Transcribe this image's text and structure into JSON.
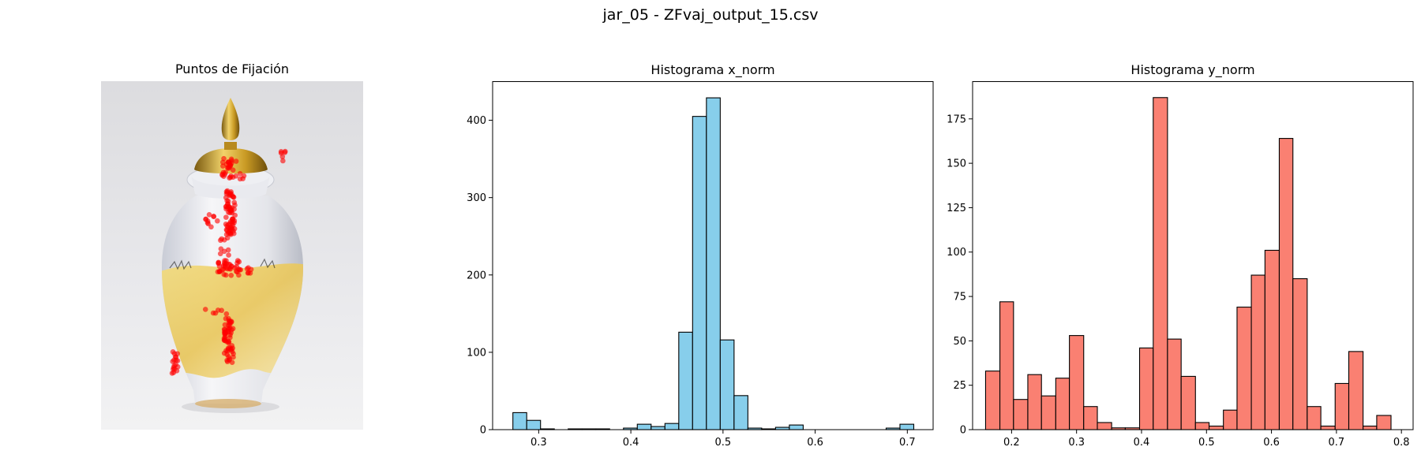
{
  "figure": {
    "suptitle": "jar_05 - ZFvaj_output_15.csv",
    "colors": {
      "x_hist": "#87ceeb",
      "y_hist": "#fa8072",
      "fixation": "#ff0000",
      "edge": "#000000"
    }
  },
  "image_panel": {
    "title": "Puntos de Fijación",
    "content": "photo of a white and gold porcelain ginger jar with a gold finial lid, overlaid with red fixation points"
  },
  "chart_data": [
    {
      "type": "bar",
      "title": "Histograma x_norm",
      "xlabel": "",
      "ylabel": "",
      "xlim": [
        0.25,
        0.728
      ],
      "ylim": [
        0,
        450
      ],
      "xticks": [
        0.3,
        0.4,
        0.5,
        0.6,
        0.7
      ],
      "xtick_labels": [
        "0.3",
        "0.4",
        "0.5",
        "0.6",
        "0.7"
      ],
      "yticks": [
        0,
        100,
        200,
        300,
        400
      ],
      "ytick_labels": [
        "0",
        "100",
        "200",
        "300",
        "400"
      ],
      "bin_edges": [
        0.272,
        0.287,
        0.302,
        0.317,
        0.332,
        0.347,
        0.362,
        0.377,
        0.392,
        0.407,
        0.422,
        0.437,
        0.452,
        0.467,
        0.482,
        0.497,
        0.512,
        0.527,
        0.542,
        0.557,
        0.572,
        0.587,
        0.602,
        0.617,
        0.632,
        0.647,
        0.662,
        0.677,
        0.692,
        0.707
      ],
      "values": [
        22,
        12,
        1,
        0,
        1,
        1,
        1,
        0,
        2,
        7,
        4,
        8,
        126,
        405,
        429,
        116,
        44,
        2,
        1,
        3,
        6,
        0,
        0,
        0,
        0,
        0,
        0,
        2,
        7
      ],
      "color": "#87ceeb"
    },
    {
      "type": "bar",
      "title": "Histograma y_norm",
      "xlabel": "",
      "ylabel": "",
      "xlim": [
        0.14,
        0.818
      ],
      "ylim": [
        0,
        196
      ],
      "xticks": [
        0.2,
        0.3,
        0.4,
        0.5,
        0.6,
        0.7,
        0.8
      ],
      "xtick_labels": [
        "0.2",
        "0.3",
        "0.4",
        "0.5",
        "0.6",
        "0.7",
        "0.8"
      ],
      "yticks": [
        0,
        25,
        50,
        75,
        100,
        125,
        150,
        175
      ],
      "ytick_labels": [
        "0",
        "25",
        "50",
        "75",
        "100",
        "125",
        "150",
        "175"
      ],
      "bin_edges": [
        0.16,
        0.182,
        0.203,
        0.225,
        0.246,
        0.268,
        0.289,
        0.311,
        0.332,
        0.354,
        0.375,
        0.397,
        0.418,
        0.44,
        0.461,
        0.483,
        0.504,
        0.526,
        0.547,
        0.569,
        0.59,
        0.612,
        0.633,
        0.655,
        0.676,
        0.698,
        0.719,
        0.741,
        0.762,
        0.784,
        0.805
      ],
      "values": [
        33,
        72,
        17,
        31,
        19,
        29,
        53,
        13,
        4,
        1,
        1,
        46,
        187,
        51,
        30,
        4,
        2,
        11,
        69,
        87,
        101,
        164,
        85,
        13,
        2,
        26,
        44,
        2,
        8,
        0
      ],
      "color": "#fa8072"
    }
  ]
}
